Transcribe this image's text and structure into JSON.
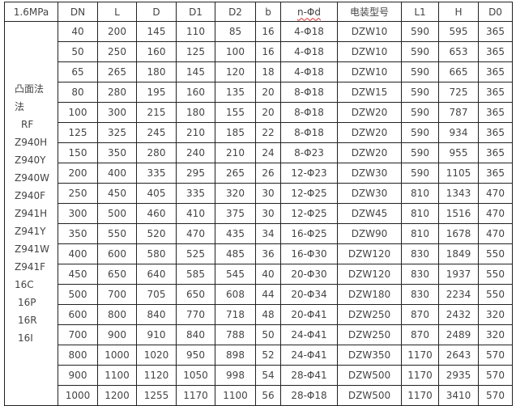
{
  "headers": [
    "1.6MPa",
    "DN",
    "L",
    "D",
    "D1",
    "D2",
    "b",
    "n-Φd",
    "电装型号",
    "L1",
    "H",
    "D0"
  ],
  "left_labels": [
    "凸面法",
    "法",
    "RF",
    "Z940H",
    "Z940Y",
    "Z940W",
    "Z940F",
    "Z941H",
    "Z941Y",
    "Z941W",
    "Z941F",
    "16C",
    "16P",
    "16R",
    "16I"
  ],
  "rows": [
    [
      "40",
      "200",
      "145",
      "110",
      "85",
      "16",
      "4-Φ18",
      "DZW10",
      "590",
      "595",
      "365"
    ],
    [
      "50",
      "250",
      "160",
      "125",
      "100",
      "16",
      "4-Φ18",
      "DZW10",
      "590",
      "653",
      "365"
    ],
    [
      "65",
      "265",
      "180",
      "145",
      "120",
      "18",
      "4-Φ18",
      "DZW10",
      "590",
      "665",
      "365"
    ],
    [
      "80",
      "280",
      "195",
      "160",
      "135",
      "20",
      "8-Φ18",
      "DZW15",
      "590",
      "725",
      "365"
    ],
    [
      "100",
      "300",
      "215",
      "180",
      "155",
      "20",
      "8-Φ18",
      "DZW20",
      "590",
      "787",
      "365"
    ],
    [
      "125",
      "325",
      "245",
      "210",
      "185",
      "22",
      "8-Φ18",
      "DZW20",
      "590",
      "934",
      "365"
    ],
    [
      "150",
      "350",
      "280",
      "240",
      "210",
      "24",
      "8-Φ23",
      "DZW20",
      "590",
      "955",
      "365"
    ],
    [
      "200",
      "400",
      "335",
      "295",
      "265",
      "26",
      "12-Φ23",
      "DZW30",
      "590",
      "1105",
      "365"
    ],
    [
      "250",
      "450",
      "405",
      "335",
      "320",
      "30",
      "12-Φ25",
      "DZW30",
      "810",
      "1343",
      "470"
    ],
    [
      "300",
      "500",
      "460",
      "410",
      "375",
      "30",
      "12-Φ25",
      "DZW45",
      "810",
      "1516",
      "470"
    ],
    [
      "350",
      "550",
      "520",
      "470",
      "435",
      "34",
      "16-Φ25",
      "DZW90",
      "810",
      "1678",
      "470"
    ],
    [
      "400",
      "600",
      "580",
      "525",
      "485",
      "36",
      "16-Φ30",
      "DZW120",
      "830",
      "1849",
      "550"
    ],
    [
      "450",
      "650",
      "640",
      "585",
      "545",
      "40",
      "20-Φ30",
      "DZW120",
      "830",
      "1937",
      "550"
    ],
    [
      "500",
      "700",
      "705",
      "650",
      "608",
      "44",
      "20-Φ34",
      "DZW180",
      "830",
      "2234",
      "550"
    ],
    [
      "600",
      "800",
      "840",
      "770",
      "718",
      "48",
      "20-Φ41",
      "DZW250",
      "870",
      "2432",
      "320"
    ],
    [
      "700",
      "900",
      "910",
      "840",
      "788",
      "50",
      "24-Φ41",
      "DZW250",
      "870",
      "2489",
      "320"
    ],
    [
      "800",
      "1000",
      "1020",
      "950",
      "898",
      "52",
      "24-Φ41",
      "DZW350",
      "1170",
      "2643",
      "570"
    ],
    [
      "900",
      "1100",
      "1120",
      "1050",
      "998",
      "54",
      "28-Φ41",
      "DZW500",
      "1170",
      "2935",
      "570"
    ],
    [
      "1000",
      "1200",
      "1255",
      "1170",
      "1100",
      "56",
      "28-Φ18",
      "DZW500",
      "1170",
      "3410",
      "570"
    ]
  ]
}
